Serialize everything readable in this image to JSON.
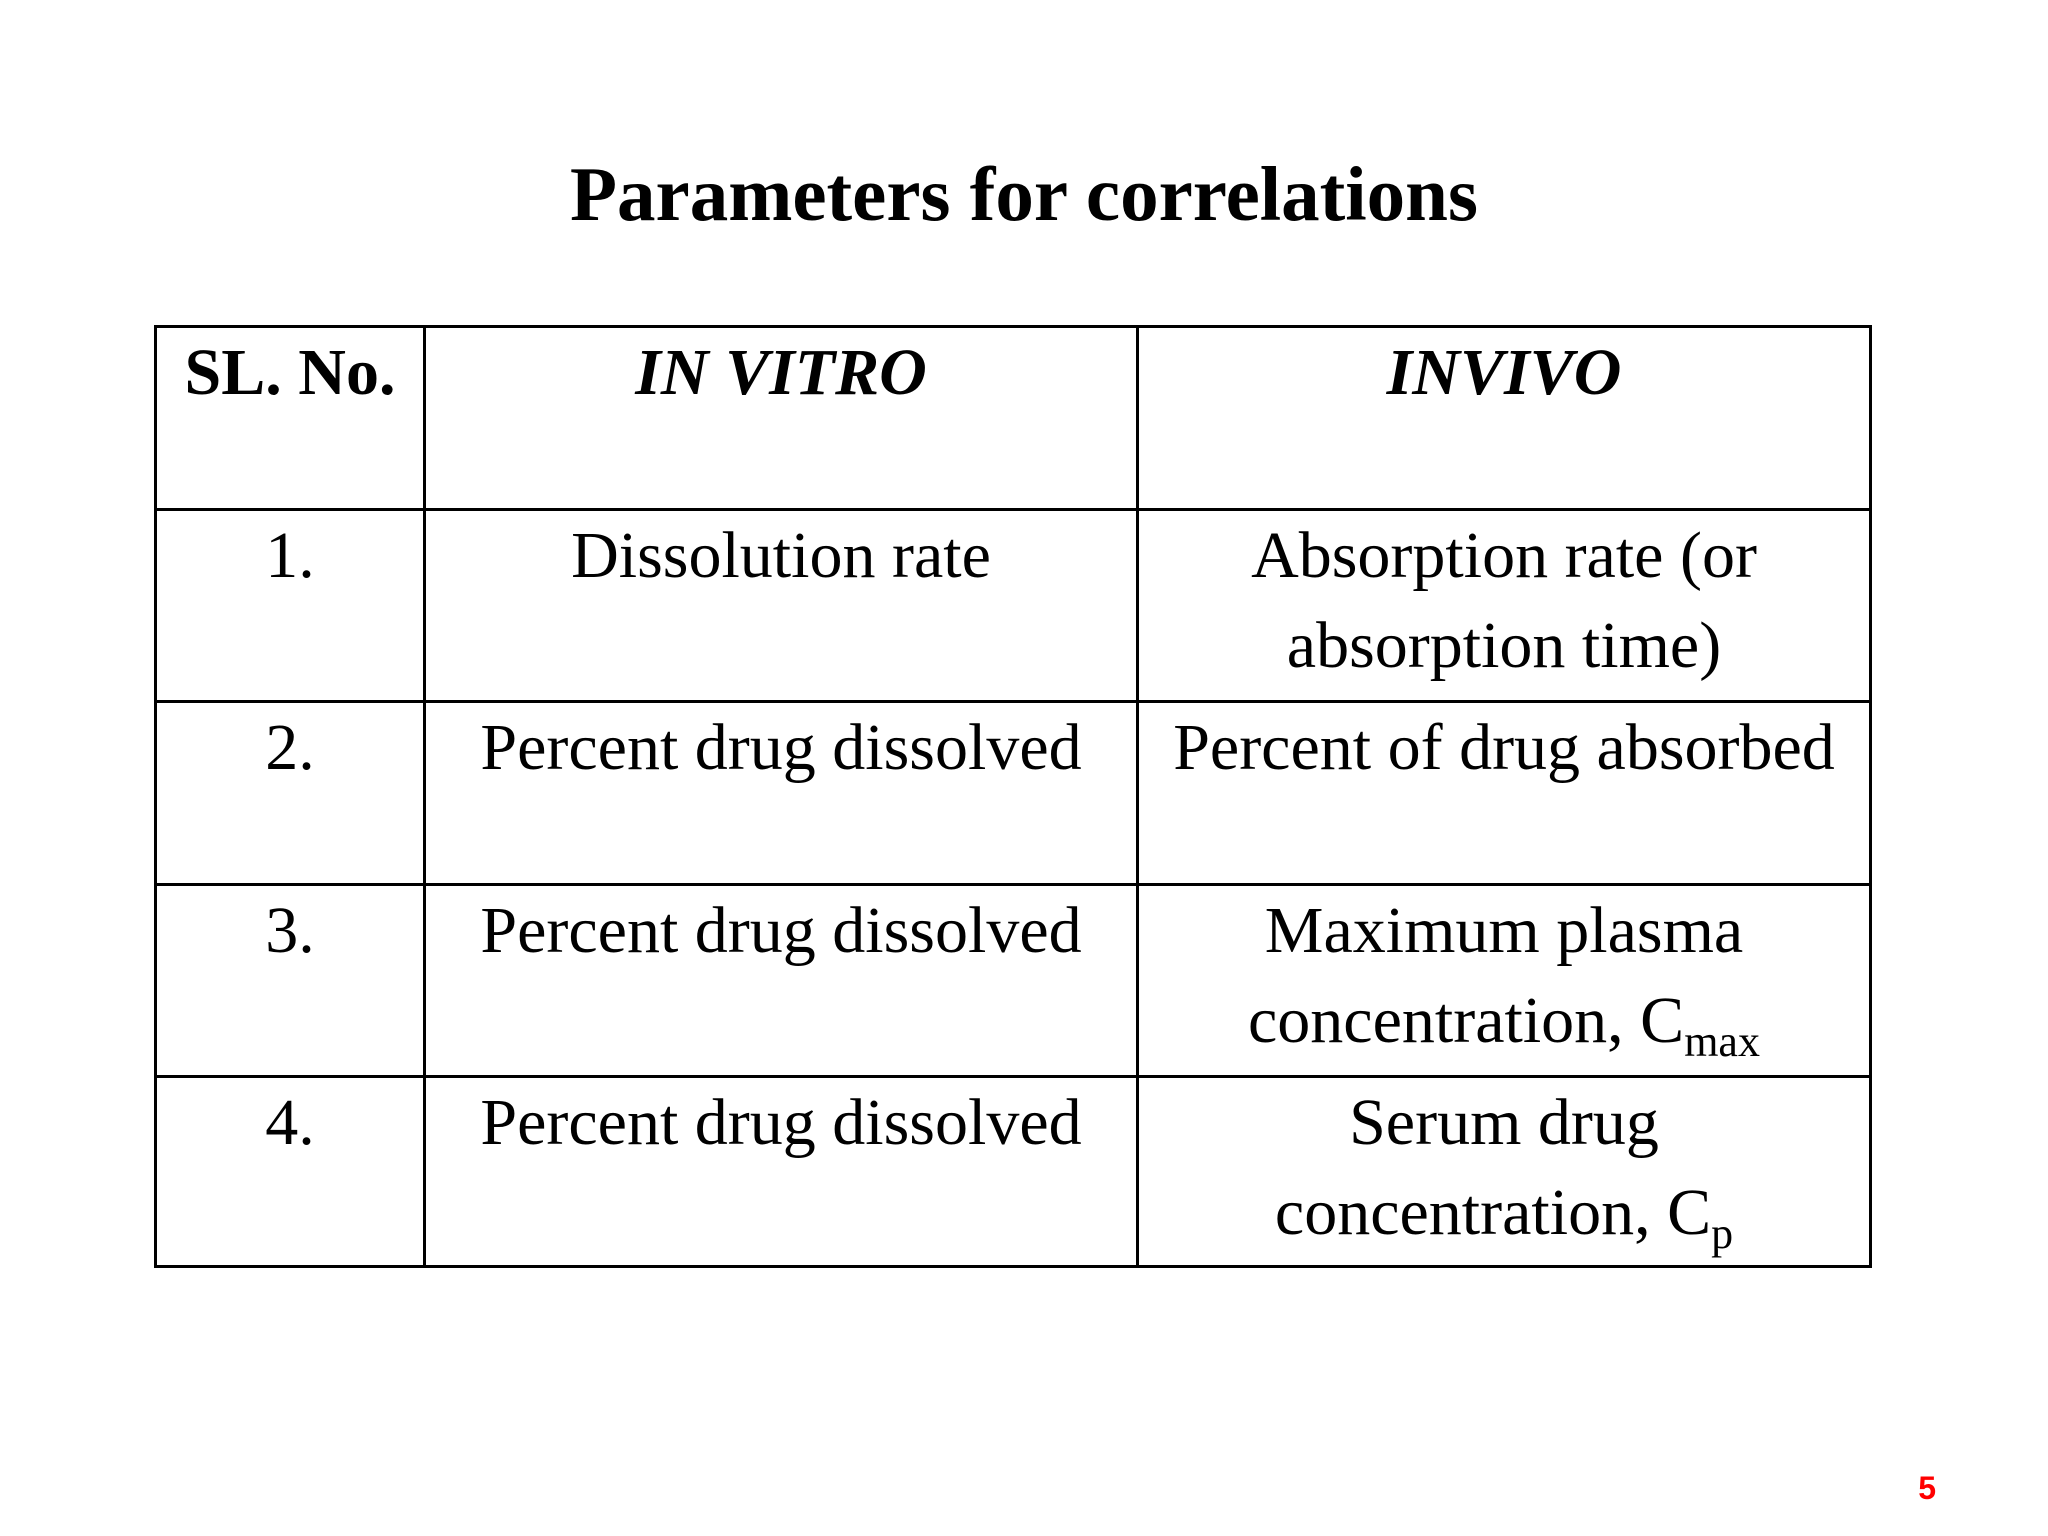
{
  "slide": {
    "title": "Parameters for correlations",
    "page_number": "5"
  },
  "table": {
    "headers": {
      "sl_no": "SL. No.",
      "in_vitro": "IN VITRO",
      "in_vivo": "INVIVO"
    },
    "rows": [
      {
        "sl": "1.",
        "in_vitro": "Dissolution rate",
        "in_vivo_line1": "Absorption rate (or",
        "in_vivo_line2": "absorption time)"
      },
      {
        "sl": "2.",
        "in_vitro": "Percent drug dissolved",
        "in_vivo_line1": "Percent of drug absorbed"
      },
      {
        "sl": "3.",
        "in_vitro": "Percent drug dissolved",
        "in_vivo_line1": "Maximum plasma",
        "in_vivo_line2": "concentration, C",
        "in_vivo_sub": "max"
      },
      {
        "sl": "4.",
        "in_vitro": "Percent drug dissolved",
        "in_vivo_line1": "Serum drug",
        "in_vivo_line2": "concentration, C",
        "in_vivo_sub": "p"
      }
    ]
  },
  "colors": {
    "page_number": "#ff0000",
    "text": "#000000",
    "background": "#ffffff"
  }
}
